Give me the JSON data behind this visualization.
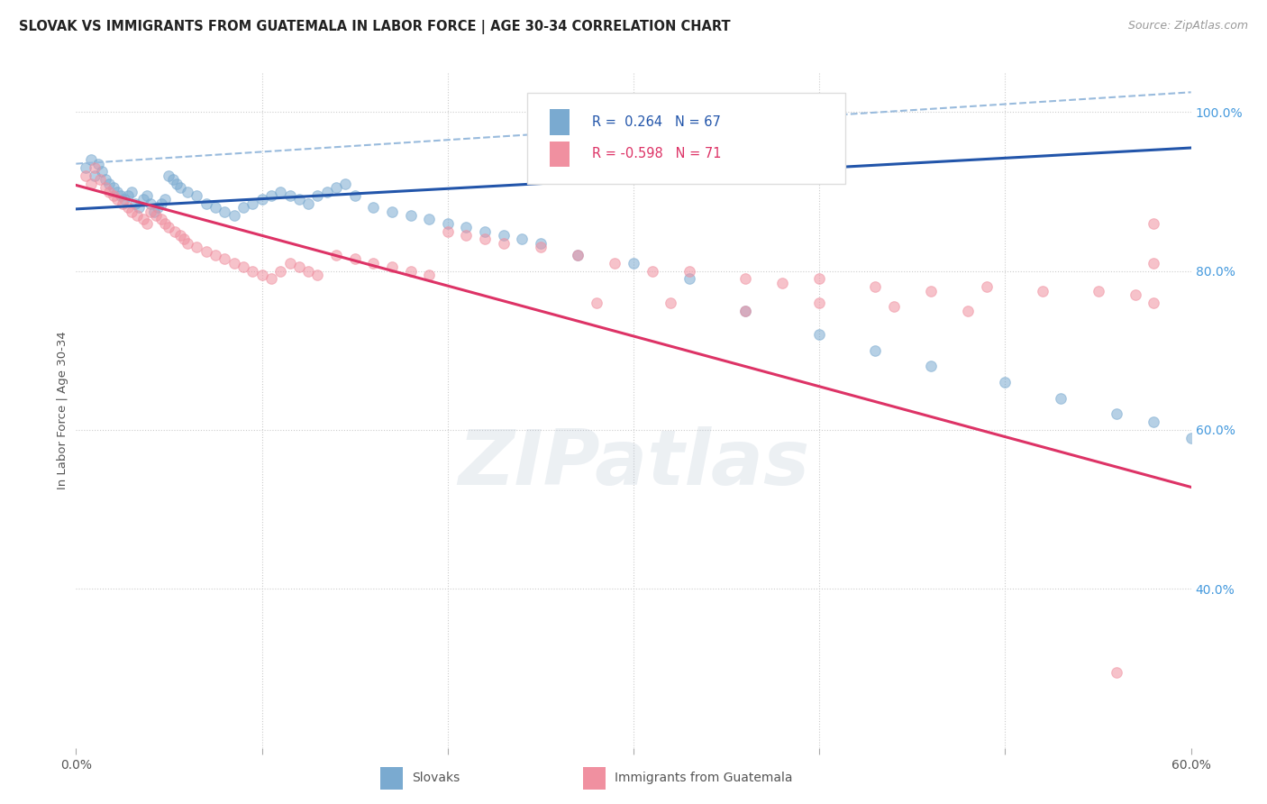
{
  "title": "SLOVAK VS IMMIGRANTS FROM GUATEMALA IN LABOR FORCE | AGE 30-34 CORRELATION CHART",
  "source": "Source: ZipAtlas.com",
  "ylabel": "In Labor Force | Age 30-34",
  "xlim": [
    0.0,
    0.6
  ],
  "ylim": [
    0.2,
    1.05
  ],
  "xticklabels": [
    "0.0%",
    "",
    "",
    "",
    "",
    "",
    "60.0%"
  ],
  "xtick_vals": [
    0.0,
    0.1,
    0.2,
    0.3,
    0.4,
    0.5,
    0.6
  ],
  "yticks_right": [
    0.4,
    0.6,
    0.8,
    1.0
  ],
  "ytick_right_labels": [
    "40.0%",
    "60.0%",
    "80.0%",
    "100.0%"
  ],
  "background_color": "#ffffff",
  "grid_color": "#cccccc",
  "blue_scatter_color": "#7aaad0",
  "pink_scatter_color": "#f090a0",
  "blue_line_color": "#2255aa",
  "pink_line_color": "#dd3366",
  "dashed_line_color": "#99bbdd",
  "right_axis_color": "#4499dd",
  "legend_R_blue": "0.264",
  "legend_N_blue": "67",
  "legend_R_pink": "-0.598",
  "legend_N_pink": "71",
  "blue_trend": [
    0.0,
    0.6,
    0.878,
    0.955
  ],
  "pink_trend": [
    0.0,
    0.6,
    0.908,
    0.528
  ],
  "dashed_trend": [
    0.0,
    0.6,
    0.935,
    1.025
  ],
  "blue_scatter_x": [
    0.005,
    0.008,
    0.01,
    0.012,
    0.014,
    0.016,
    0.018,
    0.02,
    0.022,
    0.024,
    0.026,
    0.028,
    0.03,
    0.032,
    0.034,
    0.036,
    0.038,
    0.04,
    0.042,
    0.044,
    0.046,
    0.048,
    0.05,
    0.052,
    0.054,
    0.056,
    0.06,
    0.065,
    0.07,
    0.075,
    0.08,
    0.085,
    0.09,
    0.095,
    0.1,
    0.105,
    0.11,
    0.115,
    0.12,
    0.125,
    0.13,
    0.135,
    0.14,
    0.145,
    0.15,
    0.16,
    0.17,
    0.18,
    0.19,
    0.2,
    0.21,
    0.22,
    0.23,
    0.24,
    0.25,
    0.27,
    0.3,
    0.33,
    0.36,
    0.4,
    0.43,
    0.46,
    0.5,
    0.53,
    0.56,
    0.58,
    0.6
  ],
  "blue_scatter_y": [
    0.93,
    0.94,
    0.92,
    0.935,
    0.925,
    0.915,
    0.91,
    0.905,
    0.9,
    0.895,
    0.89,
    0.895,
    0.9,
    0.885,
    0.88,
    0.89,
    0.895,
    0.885,
    0.875,
    0.88,
    0.885,
    0.89,
    0.92,
    0.915,
    0.91,
    0.905,
    0.9,
    0.895,
    0.885,
    0.88,
    0.875,
    0.87,
    0.88,
    0.885,
    0.89,
    0.895,
    0.9,
    0.895,
    0.89,
    0.885,
    0.895,
    0.9,
    0.905,
    0.91,
    0.895,
    0.88,
    0.875,
    0.87,
    0.865,
    0.86,
    0.855,
    0.85,
    0.845,
    0.84,
    0.835,
    0.82,
    0.81,
    0.79,
    0.75,
    0.72,
    0.7,
    0.68,
    0.66,
    0.64,
    0.62,
    0.61,
    0.59
  ],
  "pink_scatter_x": [
    0.005,
    0.008,
    0.01,
    0.013,
    0.016,
    0.018,
    0.02,
    0.022,
    0.025,
    0.028,
    0.03,
    0.033,
    0.036,
    0.038,
    0.04,
    0.043,
    0.046,
    0.048,
    0.05,
    0.053,
    0.056,
    0.058,
    0.06,
    0.065,
    0.07,
    0.075,
    0.08,
    0.085,
    0.09,
    0.095,
    0.1,
    0.105,
    0.11,
    0.115,
    0.12,
    0.125,
    0.13,
    0.14,
    0.15,
    0.16,
    0.17,
    0.18,
    0.19,
    0.2,
    0.21,
    0.22,
    0.23,
    0.25,
    0.27,
    0.29,
    0.31,
    0.33,
    0.36,
    0.38,
    0.4,
    0.43,
    0.46,
    0.49,
    0.52,
    0.55,
    0.57,
    0.58,
    0.58,
    0.58,
    0.28,
    0.32,
    0.36,
    0.4,
    0.44,
    0.48,
    0.56
  ],
  "pink_scatter_y": [
    0.92,
    0.91,
    0.93,
    0.915,
    0.905,
    0.9,
    0.895,
    0.89,
    0.885,
    0.88,
    0.875,
    0.87,
    0.865,
    0.86,
    0.875,
    0.87,
    0.865,
    0.86,
    0.855,
    0.85,
    0.845,
    0.84,
    0.835,
    0.83,
    0.825,
    0.82,
    0.815,
    0.81,
    0.805,
    0.8,
    0.795,
    0.79,
    0.8,
    0.81,
    0.805,
    0.8,
    0.795,
    0.82,
    0.815,
    0.81,
    0.805,
    0.8,
    0.795,
    0.85,
    0.845,
    0.84,
    0.835,
    0.83,
    0.82,
    0.81,
    0.8,
    0.8,
    0.79,
    0.785,
    0.79,
    0.78,
    0.775,
    0.78,
    0.775,
    0.775,
    0.77,
    0.86,
    0.81,
    0.76,
    0.76,
    0.76,
    0.75,
    0.76,
    0.755,
    0.75,
    0.295
  ]
}
